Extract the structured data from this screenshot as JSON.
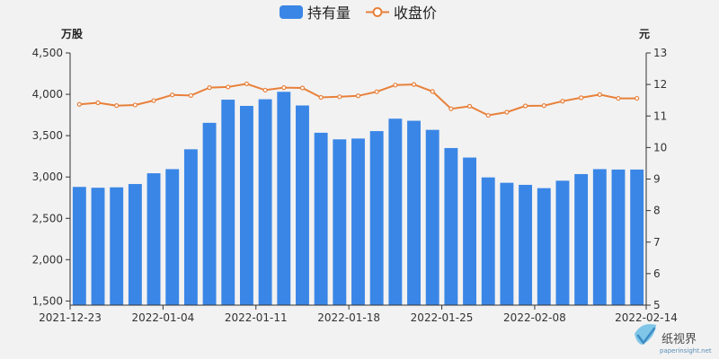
{
  "chart_data": {
    "type": "bar",
    "title": "",
    "legend": {
      "placement": "top-center",
      "items": [
        {
          "name": "持有量",
          "kind": "bar",
          "color": "#3a86e6"
        },
        {
          "name": "收盘价",
          "kind": "line",
          "color": "#e8803a"
        }
      ]
    },
    "y_left": {
      "unit": "万股",
      "min": 1450,
      "max": 4500,
      "ticks": [
        "1,500",
        "2,000",
        "2,500",
        "3,000",
        "3,500",
        "4,000",
        "4,500"
      ],
      "tick_values": [
        1500,
        2000,
        2500,
        3000,
        3500,
        4000,
        4500
      ]
    },
    "y_right": {
      "unit": "元",
      "min": 5,
      "max": 13,
      "ticks": [
        "5",
        "6",
        "7",
        "8",
        "9",
        "10",
        "11",
        "12",
        "13"
      ]
    },
    "x_tick_labels": [
      "2021-12-23",
      "2022-01-04",
      "2022-01-11",
      "2022-01-18",
      "2022-01-25",
      "2022-02-08",
      "2022-02-14"
    ],
    "x_tick_indices": [
      0,
      5,
      10,
      15,
      20,
      25,
      30
    ],
    "grid": false,
    "n_points": 31,
    "series": [
      {
        "name": "持有量",
        "type": "bar",
        "axis": "left",
        "color": "#3a86e6",
        "values": [
          2880,
          2870,
          2875,
          2915,
          3045,
          3095,
          3335,
          3655,
          3935,
          3860,
          3940,
          4030,
          3865,
          3535,
          3455,
          3465,
          3555,
          3705,
          3680,
          3570,
          3350,
          3235,
          2995,
          2930,
          2905,
          2865,
          2955,
          3035,
          3095,
          3090,
          3090
        ]
      },
      {
        "name": "收盘价",
        "type": "line",
        "axis": "right",
        "color": "#e8803a",
        "values": [
          11.37,
          11.42,
          11.33,
          11.35,
          11.49,
          11.67,
          11.65,
          11.9,
          11.92,
          12.02,
          11.82,
          11.9,
          11.89,
          11.59,
          11.61,
          11.64,
          11.77,
          11.98,
          12.0,
          11.78,
          11.23,
          11.31,
          11.02,
          11.12,
          11.32,
          11.33,
          11.47,
          11.58,
          11.68,
          11.56,
          11.56
        ]
      }
    ]
  },
  "watermark": {
    "name": "纸视界",
    "url": "paperinsight.net",
    "icon": "leaf-check-icon",
    "icon_colors": [
      "#7fc6e8",
      "#3d8cc4"
    ]
  }
}
